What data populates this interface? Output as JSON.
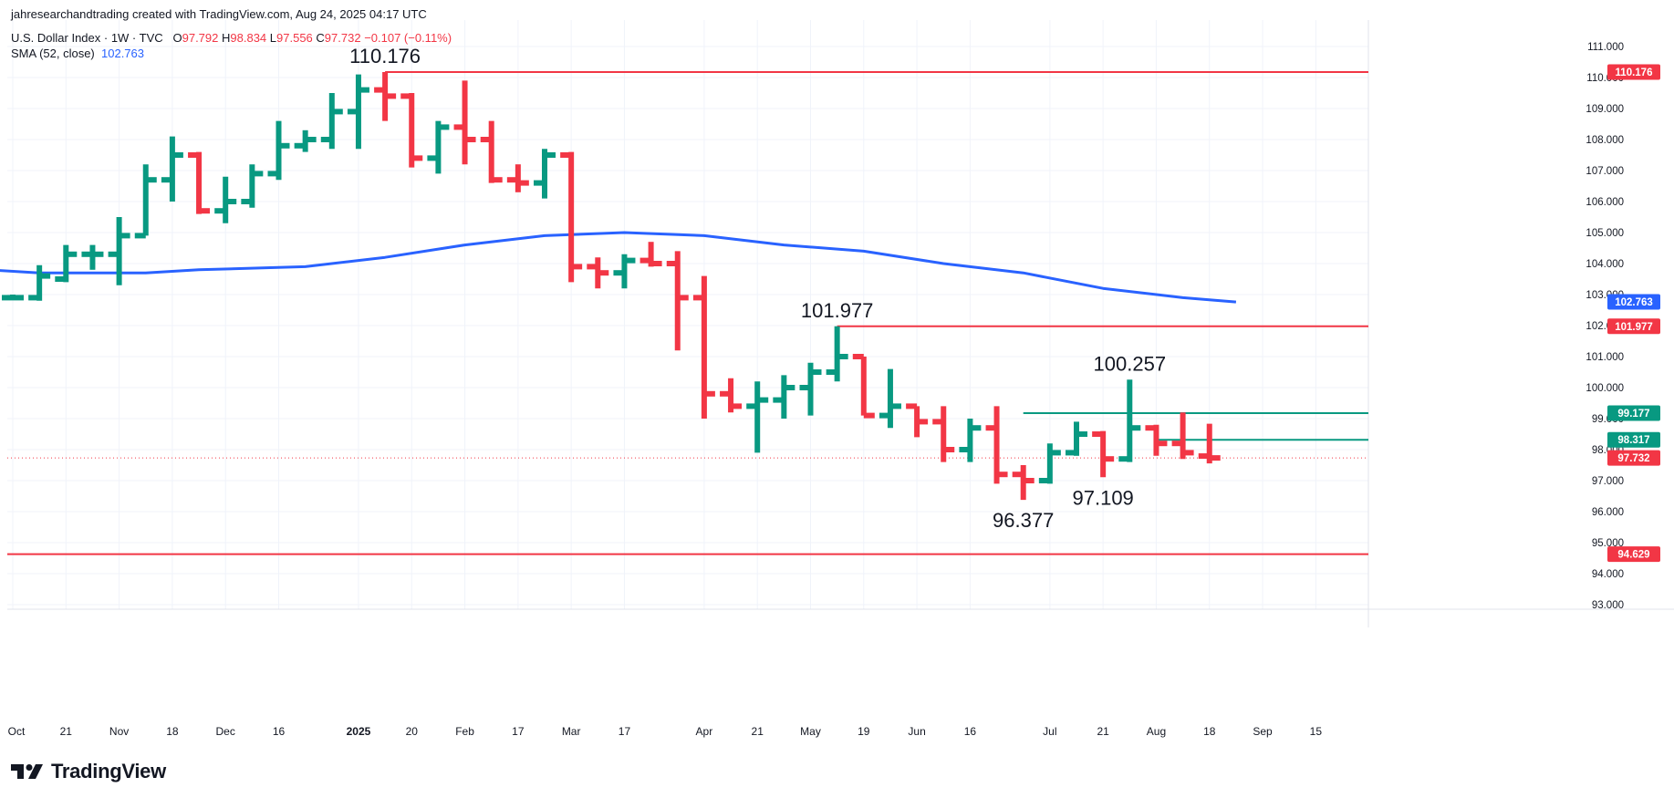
{
  "header": {
    "credit": "jahresearchandtrading created with TradingView.com, Aug 24, 2025 04:17 UTC",
    "symbol": "U.S. Dollar Index · 1W · TVC",
    "o_label": "O",
    "o_value": "97.792",
    "h_label": "H",
    "h_value": "98.834",
    "l_label": "L",
    "l_value": "97.556",
    "c_label": "C",
    "c_value": "97.732",
    "change": "−0.107 (−0.11%)",
    "sma_label": "SMA (52, close)",
    "sma_value": "102.763"
  },
  "branding": {
    "logo_text": "TradingView",
    "logo_icon": "tradingview-logo-icon"
  },
  "colors": {
    "up": "#089981",
    "down": "#f23645",
    "sma": "#2962ff",
    "grid": "#f0f3fa",
    "text": "#131722"
  },
  "chart_data": {
    "type": "ohlc",
    "title": "U.S. Dollar Index",
    "interval": "1W",
    "ylim": [
      92.6,
      111.6
    ],
    "y_ticks": [
      "111.000",
      "110.000",
      "109.000",
      "108.000",
      "107.000",
      "106.000",
      "105.000",
      "104.000",
      "103.000",
      "102.000",
      "101.000",
      "100.000",
      "99.000",
      "98.000",
      "97.000",
      "96.000",
      "95.000",
      "94.000",
      "93.000"
    ],
    "x_ticks": [
      {
        "date": "2024-10-07",
        "label": "Oct"
      },
      {
        "date": "2024-10-21",
        "label": "21"
      },
      {
        "date": "2024-11-04",
        "label": "Nov"
      },
      {
        "date": "2024-11-18",
        "label": "18"
      },
      {
        "date": "2024-12-02",
        "label": "Dec"
      },
      {
        "date": "2024-12-16",
        "label": "16"
      },
      {
        "date": "2025-01-06",
        "label": "2025"
      },
      {
        "date": "2025-01-20",
        "label": "20"
      },
      {
        "date": "2025-02-03",
        "label": "Feb"
      },
      {
        "date": "2025-02-17",
        "label": "17"
      },
      {
        "date": "2025-03-03",
        "label": "Mar"
      },
      {
        "date": "2025-03-17",
        "label": "17"
      },
      {
        "date": "2025-04-07",
        "label": "Apr"
      },
      {
        "date": "2025-04-21",
        "label": "21"
      },
      {
        "date": "2025-05-05",
        "label": "May"
      },
      {
        "date": "2025-05-19",
        "label": "19"
      },
      {
        "date": "2025-06-02",
        "label": "Jun"
      },
      {
        "date": "2025-06-16",
        "label": "16"
      },
      {
        "date": "2025-07-07",
        "label": "Jul"
      },
      {
        "date": "2025-07-21",
        "label": "21"
      },
      {
        "date": "2025-08-04",
        "label": "Aug"
      },
      {
        "date": "2025-08-18",
        "label": "18"
      },
      {
        "date": "2025-09-01",
        "label": "Sep"
      },
      {
        "date": "2025-09-15",
        "label": "15"
      }
    ],
    "bars": [
      {
        "date": "2024-09-30",
        "o": 102.6,
        "h": 102.6,
        "l": 102.25,
        "c": 102.45
      },
      {
        "date": "2024-10-07",
        "o": 102.9,
        "h": 103.0,
        "l": 102.85,
        "c": 102.9
      },
      {
        "date": "2024-10-14",
        "o": 102.9,
        "h": 103.95,
        "l": 102.8,
        "c": 103.6
      },
      {
        "date": "2024-10-21",
        "o": 103.5,
        "h": 104.6,
        "l": 103.4,
        "c": 104.3
      },
      {
        "date": "2024-10-28",
        "o": 104.3,
        "h": 104.6,
        "l": 103.8,
        "c": 104.3
      },
      {
        "date": "2024-11-04",
        "o": 104.3,
        "h": 105.5,
        "l": 103.3,
        "c": 104.9
      },
      {
        "date": "2024-11-11",
        "o": 104.9,
        "h": 107.2,
        "l": 104.9,
        "c": 106.7
      },
      {
        "date": "2024-11-18",
        "o": 106.7,
        "h": 108.1,
        "l": 106.0,
        "c": 107.5
      },
      {
        "date": "2024-11-25",
        "o": 107.5,
        "h": 107.6,
        "l": 105.6,
        "c": 105.7
      },
      {
        "date": "2024-12-02",
        "o": 105.7,
        "h": 106.8,
        "l": 105.3,
        "c": 106.0
      },
      {
        "date": "2024-12-09",
        "o": 106.0,
        "h": 107.2,
        "l": 105.8,
        "c": 106.9
      },
      {
        "date": "2024-12-16",
        "o": 106.9,
        "h": 108.6,
        "l": 106.7,
        "c": 107.8
      },
      {
        "date": "2024-12-23",
        "o": 107.8,
        "h": 108.3,
        "l": 107.6,
        "c": 108.0
      },
      {
        "date": "2024-12-30",
        "o": 108.0,
        "h": 109.5,
        "l": 107.7,
        "c": 108.9
      },
      {
        "date": "2025-01-06",
        "o": 108.9,
        "h": 110.1,
        "l": 107.7,
        "c": 109.6
      },
      {
        "date": "2025-01-13",
        "o": 109.6,
        "h": 110.176,
        "l": 108.6,
        "c": 109.4
      },
      {
        "date": "2025-01-20",
        "o": 109.4,
        "h": 109.5,
        "l": 107.1,
        "c": 107.4
      },
      {
        "date": "2025-01-27",
        "o": 107.4,
        "h": 108.6,
        "l": 106.9,
        "c": 108.4
      },
      {
        "date": "2025-02-03",
        "o": 108.4,
        "h": 109.9,
        "l": 107.2,
        "c": 108.0
      },
      {
        "date": "2025-02-10",
        "o": 108.0,
        "h": 108.6,
        "l": 106.6,
        "c": 106.7
      },
      {
        "date": "2025-02-17",
        "o": 106.7,
        "h": 107.2,
        "l": 106.3,
        "c": 106.6
      },
      {
        "date": "2025-02-24",
        "o": 106.6,
        "h": 107.7,
        "l": 106.1,
        "c": 107.5
      },
      {
        "date": "2025-03-03",
        "o": 107.5,
        "h": 107.6,
        "l": 103.4,
        "c": 103.9
      },
      {
        "date": "2025-03-10",
        "o": 103.9,
        "h": 104.2,
        "l": 103.2,
        "c": 103.7
      },
      {
        "date": "2025-03-17",
        "o": 103.7,
        "h": 104.3,
        "l": 103.2,
        "c": 104.1
      },
      {
        "date": "2025-03-24",
        "o": 104.1,
        "h": 104.7,
        "l": 103.9,
        "c": 104.0
      },
      {
        "date": "2025-03-31",
        "o": 104.0,
        "h": 104.4,
        "l": 101.2,
        "c": 102.9
      },
      {
        "date": "2025-04-07",
        "o": 102.9,
        "h": 103.6,
        "l": 99.0,
        "c": 99.8
      },
      {
        "date": "2025-04-14",
        "o": 99.8,
        "h": 100.3,
        "l": 99.2,
        "c": 99.4
      },
      {
        "date": "2025-04-21",
        "o": 99.4,
        "h": 100.2,
        "l": 97.9,
        "c": 99.6
      },
      {
        "date": "2025-04-28",
        "o": 99.6,
        "h": 100.4,
        "l": 99.0,
        "c": 100.0
      },
      {
        "date": "2025-05-05",
        "o": 100.0,
        "h": 100.8,
        "l": 99.1,
        "c": 100.5
      },
      {
        "date": "2025-05-12",
        "o": 100.5,
        "h": 101.977,
        "l": 100.2,
        "c": 101.0
      },
      {
        "date": "2025-05-19",
        "o": 101.0,
        "h": 101.0,
        "l": 99.1,
        "c": 99.1
      },
      {
        "date": "2025-05-26",
        "o": 99.1,
        "h": 100.6,
        "l": 98.7,
        "c": 99.4
      },
      {
        "date": "2025-06-02",
        "o": 99.4,
        "h": 99.4,
        "l": 98.4,
        "c": 98.9
      },
      {
        "date": "2025-06-09",
        "o": 98.9,
        "h": 99.4,
        "l": 97.6,
        "c": 98.0
      },
      {
        "date": "2025-06-16",
        "o": 98.0,
        "h": 99.0,
        "l": 97.6,
        "c": 98.7
      },
      {
        "date": "2025-06-23",
        "o": 98.7,
        "h": 99.4,
        "l": 96.9,
        "c": 97.2
      },
      {
        "date": "2025-06-30",
        "o": 97.2,
        "h": 97.5,
        "l": 96.377,
        "c": 97.0
      },
      {
        "date": "2025-07-07",
        "o": 97.0,
        "h": 98.2,
        "l": 96.9,
        "c": 97.9
      },
      {
        "date": "2025-07-14",
        "o": 97.9,
        "h": 98.9,
        "l": 97.8,
        "c": 98.5
      },
      {
        "date": "2025-07-21",
        "o": 98.5,
        "h": 98.6,
        "l": 97.109,
        "c": 97.7
      },
      {
        "date": "2025-07-28",
        "o": 97.7,
        "h": 100.257,
        "l": 97.6,
        "c": 98.7
      },
      {
        "date": "2025-08-04",
        "o": 98.7,
        "h": 98.8,
        "l": 97.8,
        "c": 98.2
      },
      {
        "date": "2025-08-11",
        "o": 98.2,
        "h": 99.2,
        "l": 97.7,
        "c": 97.9
      },
      {
        "date": "2025-08-18",
        "o": 97.792,
        "h": 98.834,
        "l": 97.556,
        "c": 97.732
      }
    ],
    "sma": {
      "name": "SMA (52, close)",
      "points": [
        {
          "date": "2024-09-30",
          "value": 103.8
        },
        {
          "date": "2024-10-14",
          "value": 103.7
        },
        {
          "date": "2024-10-28",
          "value": 103.7
        },
        {
          "date": "2024-11-11",
          "value": 103.7
        },
        {
          "date": "2024-11-25",
          "value": 103.8
        },
        {
          "date": "2024-12-23",
          "value": 103.9
        },
        {
          "date": "2025-01-13",
          "value": 104.2
        },
        {
          "date": "2025-02-03",
          "value": 104.6
        },
        {
          "date": "2025-02-24",
          "value": 104.9
        },
        {
          "date": "2025-03-17",
          "value": 105.0
        },
        {
          "date": "2025-04-07",
          "value": 104.9
        },
        {
          "date": "2025-04-28",
          "value": 104.6
        },
        {
          "date": "2025-05-19",
          "value": 104.4
        },
        {
          "date": "2025-06-09",
          "value": 104.0
        },
        {
          "date": "2025-06-30",
          "value": 103.7
        },
        {
          "date": "2025-07-21",
          "value": 103.2
        },
        {
          "date": "2025-08-11",
          "value": 102.9
        },
        {
          "date": "2025-08-25",
          "value": 102.763
        }
      ]
    },
    "hlines": [
      {
        "value": 110.176,
        "from": "2025-01-13",
        "full": true,
        "color": "#f23645",
        "label": "110.176"
      },
      {
        "value": 101.977,
        "from": "2025-05-12",
        "full": true,
        "color": "#f23645",
        "label": "101.977"
      },
      {
        "value": 99.177,
        "from": "2025-06-30",
        "to": "2025-09-29",
        "color": "#089981",
        "label": "99.177"
      },
      {
        "value": 98.317,
        "from": "2025-08-04",
        "to": "2025-09-29",
        "color": "#089981",
        "label": "98.317"
      },
      {
        "value": 94.629,
        "full": true,
        "color": "#f23645",
        "label": "94.629"
      }
    ],
    "current_price": {
      "value": 97.732,
      "label": "97.732",
      "color": "#f23645"
    },
    "sma_marker": {
      "value": 102.763,
      "label": "102.763",
      "color": "#2962ff"
    },
    "annotations": [
      {
        "date": "2025-01-13",
        "value": 110.176,
        "text": "110.176",
        "pos": "above"
      },
      {
        "date": "2025-05-12",
        "value": 101.977,
        "text": "101.977",
        "pos": "above"
      },
      {
        "date": "2025-07-28",
        "value": 100.257,
        "text": "100.257",
        "pos": "above"
      },
      {
        "date": "2025-06-30",
        "value": 96.377,
        "text": "96.377",
        "pos": "below"
      },
      {
        "date": "2025-07-21",
        "value": 97.109,
        "text": "97.109",
        "pos": "below"
      }
    ]
  }
}
